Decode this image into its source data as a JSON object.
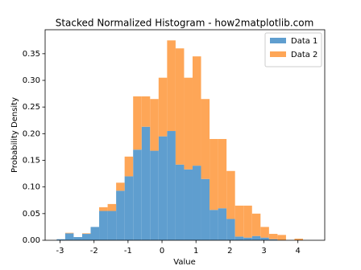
{
  "chart_data": {
    "type": "histogram",
    "title": "Stacked Normalized Histogram - how2matplotlib.com",
    "x_label": "Value",
    "y_label": "Probability Density",
    "bins": [
      -3.1,
      -2.85,
      -2.6,
      -2.35,
      -2.1,
      -1.85,
      -1.6,
      -1.35,
      -1.1,
      -0.85,
      -0.6,
      -0.35,
      -0.1,
      0.15,
      0.4,
      0.65,
      0.9,
      1.15,
      1.4,
      1.65,
      1.9,
      2.15,
      2.4,
      2.65,
      2.9,
      3.15,
      3.4,
      3.65,
      3.9,
      4.15,
      4.4
    ],
    "series": [
      {
        "name": "Data 1",
        "color": "#5f9ecf",
        "values": [
          0.002,
          0.013,
          0.006,
          0.012,
          0.025,
          0.055,
          0.055,
          0.093,
          0.12,
          0.17,
          0.213,
          0.168,
          0.195,
          0.205,
          0.142,
          0.133,
          0.14,
          0.115,
          0.057,
          0.06,
          0.04,
          0.007,
          0.005,
          0.008,
          0.005,
          0.002,
          0,
          0,
          0,
          0
        ]
      },
      {
        "name": "Data 2",
        "color": "#fea657",
        "values": [
          0,
          0.001,
          0,
          0.001,
          0,
          0.007,
          0.013,
          0.015,
          0.037,
          0.1,
          0.057,
          0.097,
          0.11,
          0.17,
          0.218,
          0.172,
          0.205,
          0.15,
          0.133,
          0.13,
          0.09,
          0.058,
          0.06,
          0.042,
          0.02,
          0.01,
          0.01,
          0,
          0.003,
          0
        ]
      }
    ],
    "xlim": [
      -3.44,
      4.79
    ],
    "xticks": [
      -3,
      -2,
      -1,
      0,
      1,
      2,
      3,
      4
    ],
    "ylim": [
      0,
      0.395
    ],
    "yticks": [
      {
        "value": 0,
        "label": "0.00"
      },
      {
        "value": 0.05,
        "label": "0.05"
      },
      {
        "value": 0.1,
        "label": "0.10"
      },
      {
        "value": 0.15,
        "label": "0.15"
      },
      {
        "value": 0.2,
        "label": "0.20"
      },
      {
        "value": 0.25,
        "label": "0.25"
      },
      {
        "value": 0.3,
        "label": "0.30"
      },
      {
        "value": 0.35,
        "label": "0.35"
      }
    ],
    "legend": "upper right"
  }
}
